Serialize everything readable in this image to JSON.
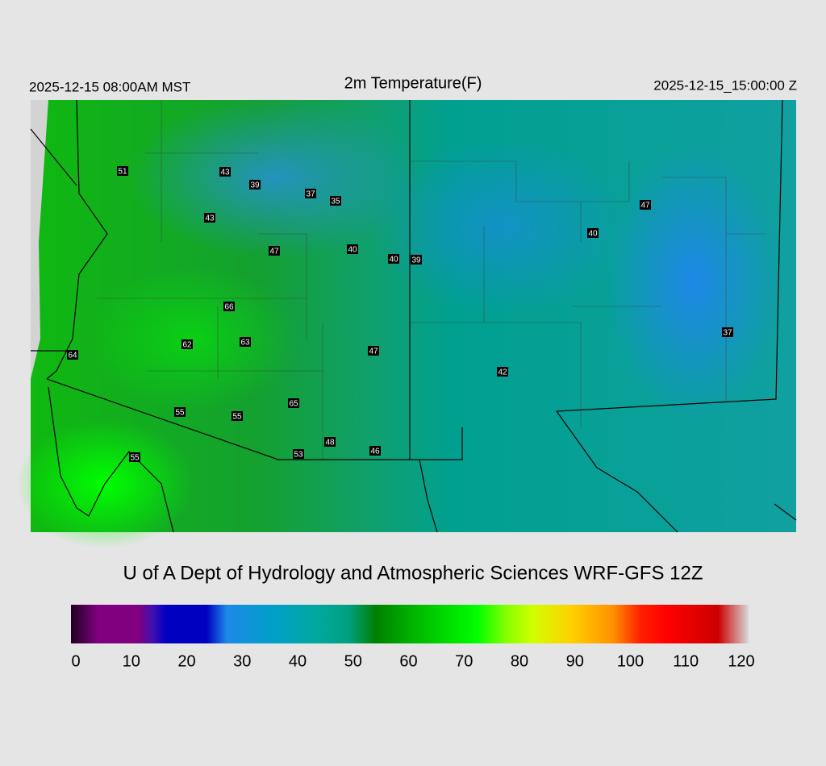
{
  "header": {
    "left": "2025-12-15 08:00AM MST",
    "title": "2m Temperature(F)",
    "right": "2025-12-15_15:00:00 Z"
  },
  "stations": [
    51,
    43,
    39,
    37,
    35,
    43,
    47,
    40,
    40,
    39,
    47,
    40,
    66,
    62,
    63,
    64,
    47,
    37,
    42,
    65,
    55,
    55,
    48,
    53,
    46,
    55
  ],
  "credit": "U of A Dept of Hydrology and Atmospheric Sciences WRF-GFS 12Z",
  "colorbar": {
    "ticks": [
      0,
      10,
      20,
      30,
      40,
      50,
      60,
      70,
      80,
      90,
      100,
      110,
      120
    ]
  }
}
